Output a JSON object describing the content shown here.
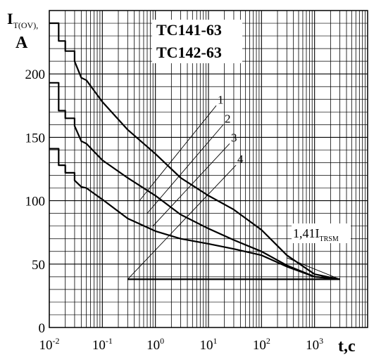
{
  "chart_data": {
    "type": "line",
    "title": [
      "TC141-63",
      "TC142-63"
    ],
    "ylabel": {
      "main": "I",
      "sub": "T(OV),",
      "unit": "A"
    },
    "xlabel": "t,c",
    "x_scale": "log",
    "xlim": [
      0.01,
      10000
    ],
    "ylim": [
      0,
      250
    ],
    "x_ticks": [
      {
        "base": "10",
        "exp": "-2"
      },
      {
        "base": "10",
        "exp": "-1"
      },
      {
        "base": "10",
        "exp": "0"
      },
      {
        "base": "10",
        "exp": "1"
      },
      {
        "base": "10",
        "exp": "2"
      },
      {
        "base": "10",
        "exp": "3"
      }
    ],
    "y_ticks": [
      "0",
      "50",
      "100",
      "150",
      "200"
    ],
    "y_tick_values": [
      0,
      50,
      100,
      150,
      200
    ],
    "grid": true,
    "series": [
      {
        "name": "1",
        "x": [
          0.01,
          0.015,
          0.015,
          0.02,
          0.02,
          0.03,
          0.03,
          0.04,
          0.05,
          0.1,
          0.3,
          1,
          3,
          10,
          30,
          100,
          300,
          1000,
          3000
        ],
        "y": [
          240,
          240,
          226,
          226,
          218,
          218,
          210,
          197,
          195,
          178,
          156,
          137,
          118,
          104,
          93,
          77,
          57,
          42,
          38
        ]
      },
      {
        "name": "2",
        "x": [
          0.01,
          0.015,
          0.015,
          0.02,
          0.02,
          0.03,
          0.03,
          0.04,
          0.05,
          0.1,
          0.3,
          1,
          3,
          10,
          30,
          100,
          300,
          1000,
          3000
        ],
        "y": [
          193,
          193,
          171,
          171,
          165,
          165,
          159,
          147,
          145,
          132,
          118,
          104,
          89,
          78,
          69,
          60,
          49,
          40,
          38
        ]
      },
      {
        "name": "3",
        "x": [
          0.01,
          0.015,
          0.015,
          0.02,
          0.02,
          0.03,
          0.03,
          0.04,
          0.05,
          0.1,
          0.3,
          1,
          3,
          10,
          30,
          100,
          300,
          1000,
          3000
        ],
        "y": [
          141,
          141,
          128,
          128,
          122,
          122,
          116,
          111,
          110,
          101,
          86,
          76,
          70,
          66,
          62,
          57,
          48,
          40,
          38
        ]
      },
      {
        "name": "4",
        "x": [
          0.3,
          3000
        ],
        "y": [
          38,
          38
        ]
      }
    ],
    "curve_labels": [
      "1",
      "2",
      "3",
      "4"
    ],
    "annotation": {
      "main": "1,41I",
      "sub": "TRSM"
    }
  }
}
